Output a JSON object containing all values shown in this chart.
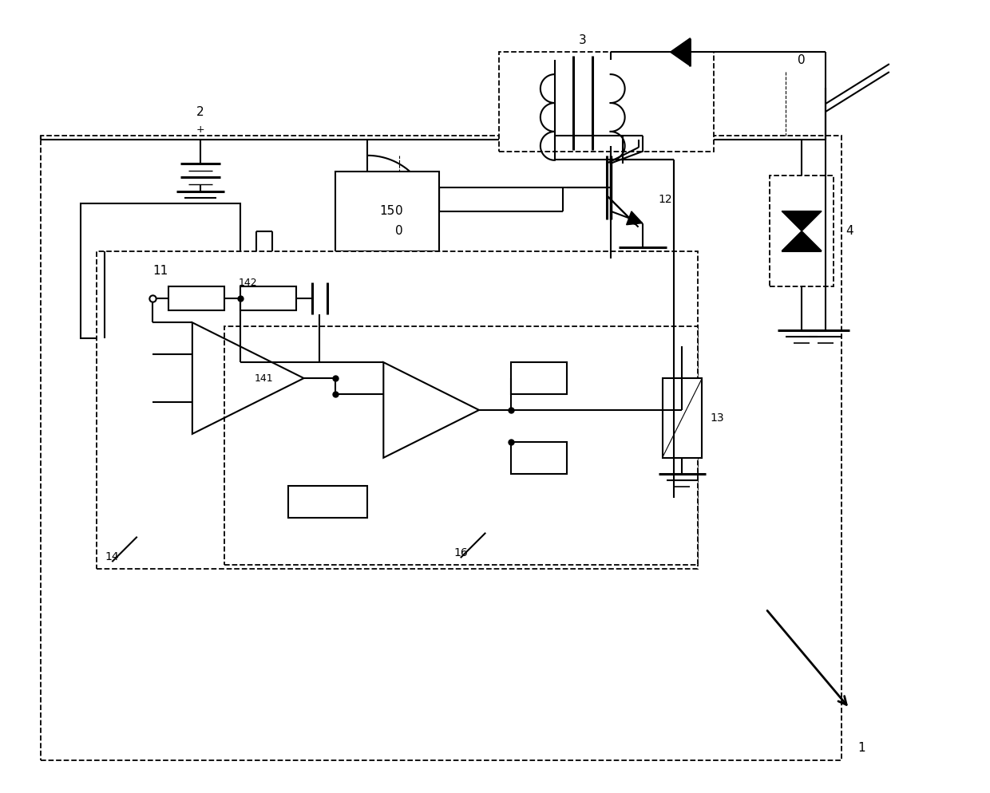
{
  "bg_color": "#ffffff",
  "line_color": "#000000",
  "fig_width": 12.4,
  "fig_height": 9.94,
  "lw": 1.5,
  "lw_thick": 2.2,
  "lw_thin": 1.0
}
